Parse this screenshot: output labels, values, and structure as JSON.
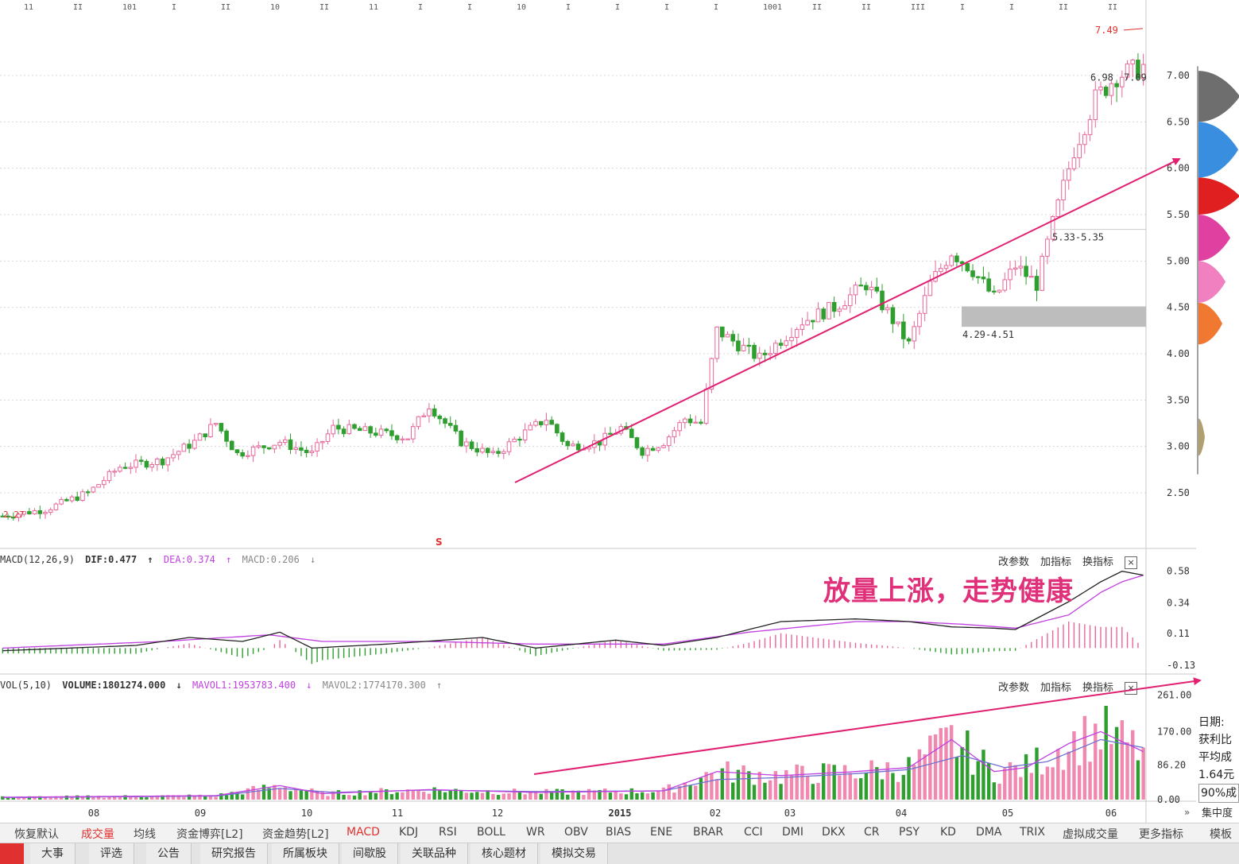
{
  "chart_data": {
    "type": "candlestick",
    "price_axis": {
      "ticks": [
        "7.00",
        "6.50",
        "6.00",
        "5.50",
        "5.00",
        "4.50",
        "4.00",
        "3.50",
        "3.00",
        "2.50"
      ],
      "min": 2.2,
      "max": 7.6
    },
    "price_labels": {
      "high": "7.49",
      "resist_zone": "5.33-5.35",
      "support_zone": "4.29-4.51",
      "recent": "6.98",
      "recent2": "7.09",
      "start": "2.27"
    },
    "x_axis": {
      "labels": [
        "08",
        "09",
        "10",
        "11",
        "12",
        "2015",
        "02",
        "03",
        "04",
        "05",
        "06"
      ]
    },
    "price_path": [
      [
        0,
        2.25
      ],
      [
        8,
        2.32
      ],
      [
        16,
        2.5
      ],
      [
        22,
        2.78
      ],
      [
        30,
        2.85
      ],
      [
        36,
        3.05
      ],
      [
        40,
        3.25
      ],
      [
        44,
        2.92
      ],
      [
        52,
        3.05
      ],
      [
        58,
        2.92
      ],
      [
        62,
        3.2
      ],
      [
        70,
        3.15
      ],
      [
        76,
        3.1
      ],
      [
        80,
        3.45
      ],
      [
        86,
        3.05
      ],
      [
        92,
        2.9
      ],
      [
        98,
        3.15
      ],
      [
        102,
        3.3
      ],
      [
        106,
        3.0
      ],
      [
        112,
        3.05
      ],
      [
        116,
        3.2
      ],
      [
        120,
        2.95
      ],
      [
        124,
        3.05
      ],
      [
        128,
        3.3
      ],
      [
        131,
        3.25
      ],
      [
        134,
        4.25
      ],
      [
        142,
        3.95
      ],
      [
        150,
        4.35
      ],
      [
        156,
        4.5
      ],
      [
        162,
        4.75
      ],
      [
        166,
        4.45
      ],
      [
        170,
        4.1
      ],
      [
        174,
        4.75
      ],
      [
        178,
        5.1
      ],
      [
        182,
        4.9
      ],
      [
        186,
        4.6
      ],
      [
        190,
        4.95
      ],
      [
        194,
        4.75
      ],
      [
        197,
        5.4
      ],
      [
        201,
        6.2
      ],
      [
        205,
        6.75
      ],
      [
        209,
        7.0
      ],
      [
        212,
        7.05
      ],
      [
        214,
        7.1
      ]
    ],
    "macd": {
      "title": "MACD(12,26,9)",
      "dif": "0.477",
      "dea": "0.374",
      "macd": "0.206",
      "axis_ticks": [
        "0.58",
        "0.34",
        "0.11",
        "-0.13"
      ],
      "min": -0.16,
      "max": 0.62,
      "dif_path": [
        [
          0,
          -0.02
        ],
        [
          25,
          0.02
        ],
        [
          35,
          0.08
        ],
        [
          45,
          0.05
        ],
        [
          52,
          0.12
        ],
        [
          58,
          0.0
        ],
        [
          72,
          0.03
        ],
        [
          90,
          0.08
        ],
        [
          100,
          0.0
        ],
        [
          115,
          0.06
        ],
        [
          124,
          0.02
        ],
        [
          134,
          0.08
        ],
        [
          146,
          0.2
        ],
        [
          160,
          0.22
        ],
        [
          170,
          0.2
        ],
        [
          178,
          0.16
        ],
        [
          186,
          0.15
        ],
        [
          190,
          0.14
        ],
        [
          200,
          0.35
        ],
        [
          206,
          0.5
        ],
        [
          210,
          0.58
        ],
        [
          214,
          0.55
        ]
      ],
      "dea_path": [
        [
          0,
          0.0
        ],
        [
          30,
          0.05
        ],
        [
          50,
          0.1
        ],
        [
          60,
          0.05
        ],
        [
          80,
          0.05
        ],
        [
          100,
          0.03
        ],
        [
          124,
          0.03
        ],
        [
          140,
          0.12
        ],
        [
          160,
          0.2
        ],
        [
          170,
          0.2
        ],
        [
          180,
          0.18
        ],
        [
          190,
          0.15
        ],
        [
          200,
          0.25
        ],
        [
          206,
          0.42
        ],
        [
          210,
          0.5
        ],
        [
          214,
          0.55
        ]
      ]
    },
    "volume": {
      "title": "VOL(5,10)",
      "volume": "1801274.000",
      "mavol1": "1953783.400",
      "mavol2": "1774170.300",
      "axis_ticks": [
        "261.00",
        "170.00",
        "86.20",
        "0.00"
      ],
      "min": 0,
      "max": 270,
      "ma1_path": [
        [
          0,
          6
        ],
        [
          40,
          10
        ],
        [
          52,
          35
        ],
        [
          60,
          15
        ],
        [
          80,
          25
        ],
        [
          100,
          18
        ],
        [
          124,
          22
        ],
        [
          134,
          70
        ],
        [
          146,
          60
        ],
        [
          160,
          70
        ],
        [
          170,
          80
        ],
        [
          178,
          150
        ],
        [
          186,
          70
        ],
        [
          192,
          80
        ],
        [
          200,
          140
        ],
        [
          206,
          170
        ],
        [
          214,
          120
        ]
      ],
      "ma2_path": [
        [
          0,
          5
        ],
        [
          40,
          9
        ],
        [
          52,
          28
        ],
        [
          62,
          18
        ],
        [
          80,
          24
        ],
        [
          100,
          20
        ],
        [
          124,
          22
        ],
        [
          134,
          50
        ],
        [
          146,
          55
        ],
        [
          160,
          65
        ],
        [
          170,
          75
        ],
        [
          180,
          110
        ],
        [
          188,
          80
        ],
        [
          196,
          95
        ],
        [
          206,
          150
        ],
        [
          214,
          130
        ]
      ]
    }
  },
  "panels": {
    "macd_header_buttons": [
      "改参数",
      "加指标",
      "换指标"
    ],
    "vol_header_buttons": [
      "改参数",
      "加指标",
      "换指标"
    ],
    "close_glyph": "×"
  },
  "annotation": "放量上涨，走势健康",
  "flag_marker": "S",
  "top_strip": [
    "11",
    "II",
    "101",
    "I",
    "II",
    "10",
    "II",
    "11",
    "I",
    "I",
    "10",
    "I",
    "I",
    "I",
    "I",
    "1001",
    "II",
    "II",
    "III",
    "I",
    "I",
    "II",
    "II"
  ],
  "tabs": [
    "恢复默认",
    "成交量",
    "均线",
    "资金博弈[L2]",
    "资金趋势[L2]",
    "MACD",
    "KDJ",
    "RSI",
    "BOLL",
    "WR",
    "OBV",
    "BIAS",
    "ENE",
    "BRAR",
    "CCI",
    "DMI",
    "DKX",
    "CR",
    "PSY",
    "KD",
    "DMA",
    "TRIX",
    "虚拟成交量",
    "更多指标",
    "模板"
  ],
  "bottom_tabs": [
    "大事",
    "评选",
    "公告",
    "研究报告",
    "所属板块",
    "间歇股",
    "关联品种",
    "核心题材",
    "模拟交易"
  ],
  "sidebar_panel": {
    "date_label": "日期:",
    "profit_label": "获利比",
    "avg_label": "平均成",
    "price_val": "1.64元",
    "pct_label": "90%成",
    "concentration": "集中度",
    "chevron": "»"
  },
  "colors": {
    "up": "#e8669a",
    "down": "#2e9e2e",
    "dif": "#222222",
    "dea": "#c040e0",
    "trend": "#e02070"
  }
}
